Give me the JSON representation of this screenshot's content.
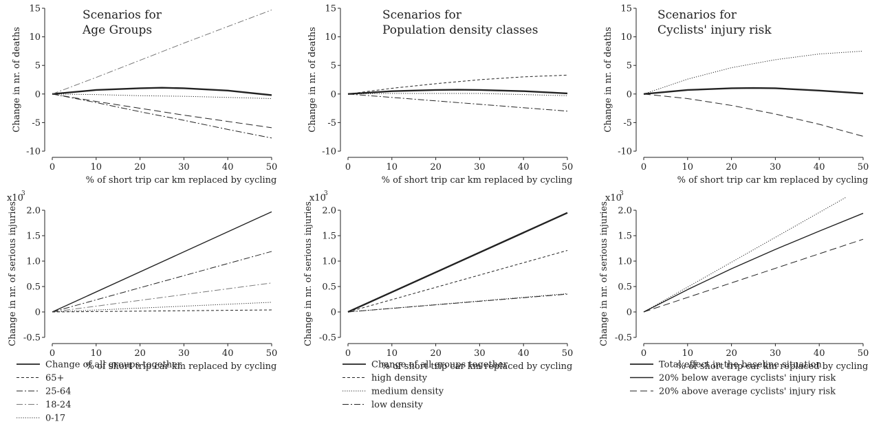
{
  "chart_data": [
    {
      "type": "line",
      "title": [
        "Scenarios for",
        "Age Groups"
      ],
      "xlabel": "% of short trip car km replaced by cycling",
      "ylabel": "Change in nr. of deaths",
      "xlim": [
        0,
        50
      ],
      "ylim": [
        -10,
        15
      ],
      "xticks": [
        "0",
        "10",
        "20",
        "30",
        "40",
        "50"
      ],
      "yticks": [
        "-10",
        "-5",
        "0",
        "5",
        "10",
        "15"
      ],
      "series": [
        {
          "style": "solid-thick",
          "x": [
            0,
            10,
            20,
            25,
            30,
            40,
            50
          ],
          "y": [
            0,
            0.7,
            1.0,
            1.1,
            1.0,
            0.6,
            -0.2
          ]
        },
        {
          "style": "dashdot-gray",
          "x": [
            0,
            10,
            20,
            30,
            40,
            50
          ],
          "y": [
            0,
            2.9,
            5.9,
            8.9,
            11.8,
            14.7
          ]
        },
        {
          "style": "dotted",
          "x": [
            0,
            10,
            20,
            30,
            40,
            50
          ],
          "y": [
            0,
            -0.1,
            -0.3,
            -0.4,
            -0.6,
            -0.8
          ]
        },
        {
          "style": "longdash",
          "x": [
            0,
            10,
            20,
            30,
            40,
            50
          ],
          "y": [
            0,
            -1.3,
            -2.5,
            -3.7,
            -4.8,
            -5.9
          ]
        },
        {
          "style": "dashdot",
          "x": [
            0,
            10,
            20,
            30,
            40,
            50
          ],
          "y": [
            0,
            -1.5,
            -3.1,
            -4.6,
            -6.2,
            -7.7
          ]
        }
      ]
    },
    {
      "type": "line",
      "title": [
        "Scenarios for",
        "Population density classes"
      ],
      "xlabel": "% of short trip car km replaced by cycling",
      "ylabel": "Change in nr. of deaths",
      "xlim": [
        0,
        50
      ],
      "ylim": [
        -10,
        15
      ],
      "xticks": [
        "0",
        "10",
        "20",
        "30",
        "40",
        "50"
      ],
      "yticks": [
        "-10",
        "-5",
        "0",
        "5",
        "10",
        "15"
      ],
      "series": [
        {
          "style": "solid-thick",
          "x": [
            0,
            10,
            20,
            25,
            30,
            40,
            50
          ],
          "y": [
            0,
            0.5,
            0.7,
            0.75,
            0.7,
            0.5,
            0.1
          ]
        },
        {
          "style": "dashed",
          "x": [
            0,
            10,
            20,
            30,
            40,
            50
          ],
          "y": [
            0,
            1.0,
            1.8,
            2.5,
            3.0,
            3.3
          ]
        },
        {
          "style": "dotted",
          "x": [
            0,
            10,
            20,
            30,
            40,
            50
          ],
          "y": [
            0,
            0.1,
            0.1,
            0.1,
            -0.1,
            -0.3
          ]
        },
        {
          "style": "dashdot",
          "x": [
            0,
            10,
            20,
            30,
            40,
            50
          ],
          "y": [
            0,
            -0.6,
            -1.2,
            -1.8,
            -2.4,
            -3.0
          ]
        }
      ]
    },
    {
      "type": "line",
      "title": [
        "Scenarios for",
        "Cyclists' injury risk"
      ],
      "xlabel": "% of short trip car km replaced by cycling",
      "ylabel": "Change in nr. of deaths",
      "xlim": [
        0,
        50
      ],
      "ylim": [
        -10,
        15
      ],
      "xticks": [
        "0",
        "10",
        "20",
        "30",
        "40",
        "50"
      ],
      "yticks": [
        "-10",
        "-5",
        "0",
        "5",
        "10",
        "15"
      ],
      "series": [
        {
          "style": "solid-thick",
          "x": [
            0,
            10,
            20,
            25,
            30,
            40,
            50
          ],
          "y": [
            0,
            0.7,
            1.0,
            1.05,
            1.0,
            0.6,
            0.1
          ]
        },
        {
          "style": "dotted",
          "x": [
            0,
            10,
            20,
            30,
            40,
            50
          ],
          "y": [
            0,
            2.6,
            4.6,
            6.0,
            7.0,
            7.5
          ]
        },
        {
          "style": "longdash",
          "x": [
            0,
            10,
            20,
            30,
            40,
            50
          ],
          "y": [
            0,
            -0.8,
            -2.0,
            -3.5,
            -5.3,
            -7.4
          ]
        }
      ]
    },
    {
      "type": "line",
      "xlabel": "% of short trip car km replaced by cycling",
      "ylabel": "Change in nr. of serious injuries",
      "yunit": "x10",
      "yunit_exp": "3",
      "xlim": [
        0,
        50
      ],
      "ylim": [
        -0.5,
        2.0
      ],
      "xticks": [
        "0",
        "10",
        "20",
        "30",
        "40",
        "50"
      ],
      "yticks": [
        "-0.5",
        "0",
        "0.5",
        "1.0",
        "1.5",
        "2.0"
      ],
      "series": [
        {
          "style": "solid",
          "x": [
            0,
            50
          ],
          "y": [
            0,
            1.97
          ]
        },
        {
          "style": "dashdot",
          "x": [
            0,
            50
          ],
          "y": [
            0,
            1.19
          ]
        },
        {
          "style": "dashdot-gray",
          "x": [
            0,
            50
          ],
          "y": [
            0,
            0.57
          ]
        },
        {
          "style": "dotted",
          "x": [
            0,
            50
          ],
          "y": [
            0,
            0.19
          ]
        },
        {
          "style": "dashed",
          "x": [
            0,
            50
          ],
          "y": [
            0,
            0.04
          ]
        }
      ]
    },
    {
      "type": "line",
      "xlabel": "% of short trip car km replaced by cycling",
      "ylabel": "Change in nr. of serious injuries",
      "yunit": "x10",
      "yunit_exp": "3",
      "xlim": [
        0,
        50
      ],
      "ylim": [
        -0.5,
        2.0
      ],
      "xticks": [
        "0",
        "10",
        "20",
        "30",
        "40",
        "50"
      ],
      "yticks": [
        "-0.5",
        "0",
        "0.5",
        "1.0",
        "1.5",
        "2.0"
      ],
      "series": [
        {
          "style": "solid-thick",
          "x": [
            0,
            50
          ],
          "y": [
            0,
            1.95
          ]
        },
        {
          "style": "dashed",
          "x": [
            0,
            50
          ],
          "y": [
            0,
            1.21
          ]
        },
        {
          "style": "dotted",
          "x": [
            0,
            50
          ],
          "y": [
            0,
            0.36
          ]
        },
        {
          "style": "dashdot",
          "x": [
            0,
            50
          ],
          "y": [
            0,
            0.35
          ]
        }
      ]
    },
    {
      "type": "line",
      "xlabel": "% of short trip car km replaced by cycling",
      "ylabel": "Change in nr. of serious injuries",
      "yunit": "x10",
      "yunit_exp": "3",
      "xlim": [
        0,
        50
      ],
      "ylim": [
        -0.5,
        2.0
      ],
      "xticks": [
        "0",
        "10",
        "20",
        "30",
        "40",
        "50"
      ],
      "yticks": [
        "-0.5",
        "0",
        "0.5",
        "1.0",
        "1.5",
        "2.0"
      ],
      "series": [
        {
          "style": "dotted",
          "x": [
            0,
            46
          ],
          "y": [
            0,
            2.25
          ]
        },
        {
          "style": "solid",
          "x": [
            0,
            10,
            20,
            30,
            40,
            50
          ],
          "y": [
            0,
            0.44,
            0.85,
            1.23,
            1.59,
            1.94
          ]
        },
        {
          "style": "longdash",
          "x": [
            0,
            50
          ],
          "y": [
            0,
            1.43
          ]
        }
      ]
    }
  ],
  "legends": [
    {
      "items": [
        {
          "label": "Change of all groups together",
          "style": "solid-thick"
        },
        {
          "label": "65+",
          "style": "dashed"
        },
        {
          "label": "25-64",
          "style": "dashdot"
        },
        {
          "label": "18-24",
          "style": "dashdot-gray"
        },
        {
          "label": "0-17",
          "style": "dotted"
        }
      ]
    },
    {
      "items": [
        {
          "label": "Change of all groups together",
          "style": "solid-thick"
        },
        {
          "label": "high density",
          "style": "dashed"
        },
        {
          "label": "medium density",
          "style": "dotted"
        },
        {
          "label": "low density",
          "style": "dashdot"
        }
      ]
    },
    {
      "items": [
        {
          "label": "Total effect in the baseline situation",
          "style": "solid-thick"
        },
        {
          "label": "20% below average cyclists' injury risk",
          "style": "solid"
        },
        {
          "label": "20% above average cyclists' injury risk",
          "style": "longdash"
        }
      ]
    }
  ],
  "colors": {
    "ink": "#222222",
    "gray": "#777777"
  }
}
